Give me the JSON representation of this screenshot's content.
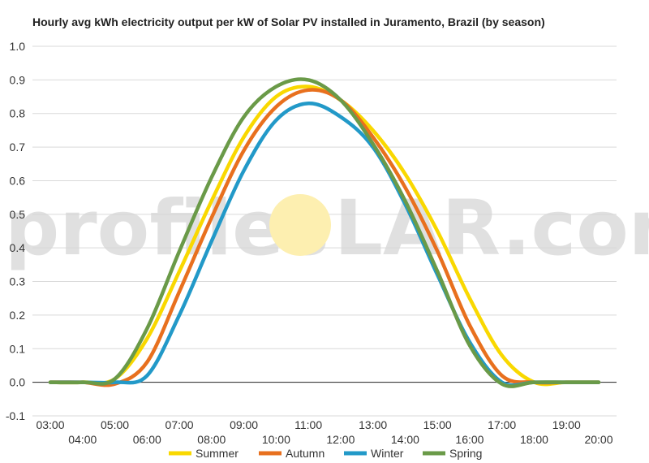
{
  "chart_data": {
    "type": "line",
    "title": "Hourly avg kWh electricity output per kW of Solar PV installed in Juramento, Brazil (by season)",
    "watermark": {
      "left": "profiles",
      "right": "LAR.com"
    },
    "colors": {
      "Summer": "#f9d800",
      "Autumn": "#e8701e",
      "Winter": "#2299c8",
      "Spring": "#6a9a48",
      "sun": "#fdefb0"
    },
    "ylim": [
      -0.1,
      1.0
    ],
    "y_ticks": [
      "-0.1",
      "0.0",
      "0.1",
      "0.2",
      "0.3",
      "0.4",
      "0.5",
      "0.6",
      "0.7",
      "0.8",
      "0.9",
      "1.0"
    ],
    "x_ticks_upper": [
      "03:00",
      "05:00",
      "07:00",
      "09:00",
      "11:00",
      "13:00",
      "15:00",
      "17:00",
      "19:00"
    ],
    "x_ticks_lower": [
      "04:00",
      "06:00",
      "08:00",
      "10:00",
      "12:00",
      "14:00",
      "16:00",
      "18:00",
      "20:00"
    ],
    "x": [
      "03:00",
      "04:00",
      "05:00",
      "06:00",
      "07:00",
      "08:00",
      "09:00",
      "10:00",
      "11:00",
      "12:00",
      "13:00",
      "14:00",
      "15:00",
      "16:00",
      "17:00",
      "18:00",
      "19:00",
      "20:00"
    ],
    "series": [
      {
        "name": "Summer",
        "values": [
          0,
          0,
          0.01,
          0.13,
          0.33,
          0.54,
          0.73,
          0.85,
          0.88,
          0.84,
          0.75,
          0.62,
          0.45,
          0.25,
          0.08,
          0.0,
          0,
          0
        ]
      },
      {
        "name": "Autumn",
        "values": [
          0,
          0,
          -0.005,
          0.06,
          0.27,
          0.49,
          0.69,
          0.82,
          0.87,
          0.84,
          0.73,
          0.58,
          0.39,
          0.17,
          0.02,
          0,
          0,
          0
        ]
      },
      {
        "name": "Winter",
        "values": [
          0,
          0,
          0,
          0.02,
          0.2,
          0.42,
          0.63,
          0.78,
          0.83,
          0.79,
          0.7,
          0.53,
          0.32,
          0.12,
          0.0,
          0,
          0,
          0
        ]
      },
      {
        "name": "Spring",
        "values": [
          0,
          0,
          0.01,
          0.16,
          0.39,
          0.61,
          0.79,
          0.88,
          0.9,
          0.84,
          0.71,
          0.54,
          0.33,
          0.11,
          -0.005,
          0,
          0,
          0
        ]
      }
    ],
    "legend": [
      "Summer",
      "Autumn",
      "Winter",
      "Spring"
    ],
    "legend_position": "bottom",
    "grid": true
  }
}
